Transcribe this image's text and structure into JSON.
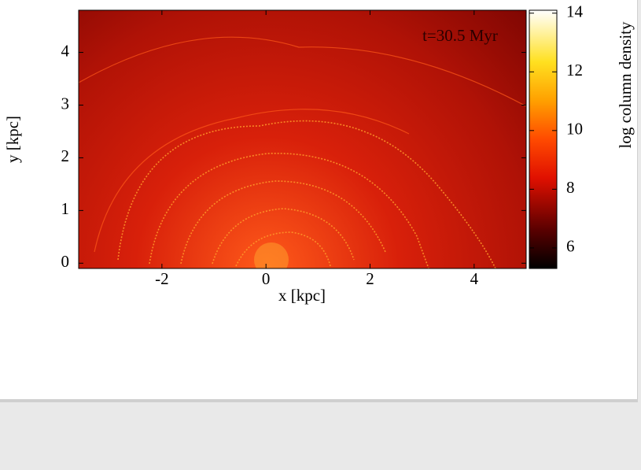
{
  "chart_data": {
    "type": "heatmap",
    "xlabel": "x [kpc]",
    "ylabel": "y [kpc]",
    "colorbar_label": "log column density",
    "annotation": "t=30.5 Myr",
    "xlim": [
      -3.6,
      5
    ],
    "xticks": [
      -2,
      0,
      2,
      4
    ],
    "ylim": [
      -0.1,
      4.8
    ],
    "yticks": [
      0,
      1,
      2,
      3,
      4
    ],
    "clim": [
      5.3,
      14.1
    ],
    "cticks": [
      6,
      8,
      10,
      12,
      14
    ]
  }
}
